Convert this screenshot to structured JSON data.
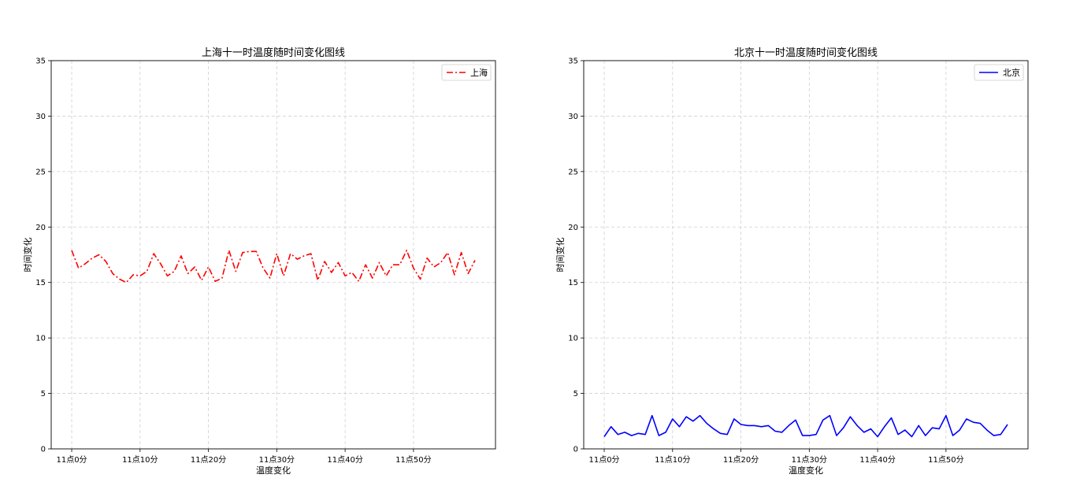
{
  "chart_data": [
    {
      "type": "line",
      "title": "上海十一时温度随时间变化图线",
      "xlabel": "温度变化",
      "ylabel": "时间变化",
      "ylim": [
        0,
        35
      ],
      "yticks": [
        0,
        5,
        10,
        15,
        20,
        25,
        30,
        35
      ],
      "xlim": [
        -3,
        62
      ],
      "xtick_values": [
        0,
        10,
        20,
        30,
        40,
        50
      ],
      "xtick_labels": [
        "11点0分",
        "11点10分",
        "11点20分",
        "11点30分",
        "11点40分",
        "11点50分"
      ],
      "grid": true,
      "legend_position": "top-right",
      "series": [
        {
          "name": "上海",
          "color": "#ff0000",
          "line_style": "dashdot",
          "x": [
            0,
            1,
            2,
            3,
            4,
            5,
            6,
            7,
            8,
            9,
            10,
            11,
            12,
            13,
            14,
            15,
            16,
            17,
            18,
            19,
            20,
            21,
            22,
            23,
            24,
            25,
            26,
            27,
            28,
            29,
            30,
            31,
            32,
            33,
            34,
            35,
            36,
            37,
            38,
            39,
            40,
            41,
            42,
            43,
            44,
            45,
            46,
            47,
            48,
            49,
            50,
            51,
            52,
            53,
            54,
            55,
            56,
            57,
            58,
            59
          ],
          "y": [
            17.9,
            16.3,
            16.7,
            17.2,
            17.5,
            16.9,
            15.8,
            15.3,
            15.0,
            15.7,
            15.6,
            16.0,
            17.6,
            16.7,
            15.6,
            16.0,
            17.4,
            15.8,
            16.4,
            15.2,
            16.4,
            15.1,
            15.4,
            17.9,
            16.0,
            17.7,
            17.8,
            17.8,
            16.3,
            15.4,
            17.6,
            15.6,
            17.6,
            17.1,
            17.4,
            17.6,
            15.2,
            16.9,
            15.9,
            16.8,
            15.6,
            15.9,
            15.1,
            16.6,
            15.4,
            16.8,
            15.6,
            16.6,
            16.6,
            17.9,
            16.3,
            15.3,
            17.2,
            16.4,
            16.8,
            17.7,
            15.7,
            17.7,
            15.8,
            17.0
          ]
        }
      ]
    },
    {
      "type": "line",
      "title": "北京十一时温度随时间变化图线",
      "xlabel": "温度变化",
      "ylabel": "时间变化",
      "ylim": [
        0,
        35
      ],
      "yticks": [
        0,
        5,
        10,
        15,
        20,
        25,
        30,
        35
      ],
      "xlim": [
        -3,
        62
      ],
      "xtick_values": [
        0,
        10,
        20,
        30,
        40,
        50
      ],
      "xtick_labels": [
        "11点0分",
        "11点10分",
        "11点20分",
        "11点30分",
        "11点40分",
        "11点50分"
      ],
      "grid": true,
      "legend_position": "top-right",
      "series": [
        {
          "name": "北京",
          "color": "#0000ff",
          "line_style": "solid",
          "x": [
            0,
            1,
            2,
            3,
            4,
            5,
            6,
            7,
            8,
            9,
            10,
            11,
            12,
            13,
            14,
            15,
            16,
            17,
            18,
            19,
            20,
            21,
            22,
            23,
            24,
            25,
            26,
            27,
            28,
            29,
            30,
            31,
            32,
            33,
            34,
            35,
            36,
            37,
            38,
            39,
            40,
            41,
            42,
            43,
            44,
            45,
            46,
            47,
            48,
            49,
            50,
            51,
            52,
            53,
            54,
            55,
            56,
            57,
            58,
            59
          ],
          "y": [
            1.1,
            2.0,
            1.3,
            1.5,
            1.2,
            1.4,
            1.3,
            3.0,
            1.2,
            1.5,
            2.7,
            2.0,
            2.9,
            2.5,
            3.0,
            2.3,
            1.8,
            1.4,
            1.3,
            2.7,
            2.2,
            2.1,
            2.1,
            2.0,
            2.1,
            1.6,
            1.5,
            2.1,
            2.6,
            1.2,
            1.2,
            1.3,
            2.6,
            3.0,
            1.2,
            1.9,
            2.9,
            2.1,
            1.5,
            1.8,
            1.1,
            2.0,
            2.8,
            1.3,
            1.7,
            1.1,
            2.1,
            1.2,
            1.9,
            1.8,
            3.0,
            1.2,
            1.7,
            2.7,
            2.4,
            2.3,
            1.7,
            1.2,
            1.3,
            2.2
          ]
        }
      ]
    }
  ]
}
